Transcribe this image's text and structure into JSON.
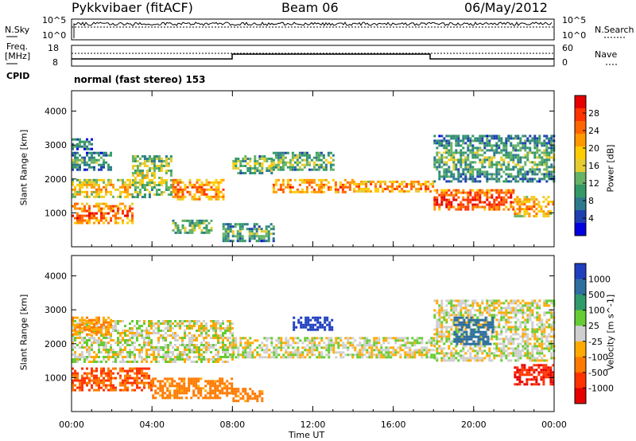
{
  "header": {
    "radar": "Pykkvibaer (fitACF)",
    "beam": "Beam 06",
    "date": "06/May/2012"
  },
  "panels": {
    "nsky": {
      "left_label": "N.Sky",
      "right_label": "N.Search",
      "left_ticks": [
        "10^5",
        "10^0"
      ],
      "right_ticks": [
        "10^5",
        "10^0"
      ]
    },
    "freq": {
      "left_label_1": "Freq.",
      "left_label_2": "[MHz]",
      "right_label": "Nave",
      "left_ticks": [
        "18",
        "8"
      ],
      "right_ticks": [
        "60",
        "0"
      ]
    },
    "cpid": {
      "label": "CPID",
      "text": "normal (fast stereo) 153"
    }
  },
  "power_colorbar": {
    "label": "Power [dB]",
    "ticks": [
      "28",
      "24",
      "20",
      "16",
      "12",
      "8",
      "4"
    ],
    "colors": [
      "#e60000",
      "#ff3300",
      "#ff6600",
      "#ff9900",
      "#ffcc00",
      "#e6cc33",
      "#66b266",
      "#339966",
      "#2d7a8c",
      "#2040b0",
      "#0000e0"
    ]
  },
  "velocity_colorbar": {
    "label": "Velocity [m s^-1]",
    "ticks": [
      "1000",
      "500",
      "100",
      "25",
      "-25",
      "-100",
      "-500",
      "-1000"
    ],
    "colors": [
      "#1f3fbf",
      "#2f6fa0",
      "#2f9a6a",
      "#66cc33",
      "#cfcfcf",
      "#ffaa00",
      "#ff7a00",
      "#ff3300",
      "#e60000"
    ]
  },
  "chart_data": [
    {
      "type": "heatmap",
      "title": "",
      "xlabel": "Time UT",
      "ylabel": "Slant Range [km]",
      "x_ticks": [
        "00:00",
        "04:00",
        "08:00",
        "12:00",
        "16:00",
        "20:00",
        "00:00"
      ],
      "y_ticks": [
        1000,
        2000,
        3000,
        4000
      ],
      "ylim": [
        0,
        4600
      ],
      "xlim_hours": [
        0,
        24
      ],
      "variable": "Power [dB]",
      "scatter_bands": [
        {
          "t": [
            0,
            3
          ],
          "r": [
            700,
            1300
          ],
          "value": 24
        },
        {
          "t": [
            0,
            3
          ],
          "r": [
            1500,
            2000
          ],
          "value": 18
        },
        {
          "t": [
            0,
            2
          ],
          "r": [
            2300,
            2800
          ],
          "value": 10
        },
        {
          "t": [
            0,
            1
          ],
          "r": [
            2900,
            3200
          ],
          "value": 8
        },
        {
          "t": [
            3,
            5
          ],
          "r": [
            1500,
            2700
          ],
          "value": 14
        },
        {
          "t": [
            5,
            7.5
          ],
          "r": [
            1400,
            2000
          ],
          "value": 22
        },
        {
          "t": [
            5,
            7
          ],
          "r": [
            400,
            800
          ],
          "value": 12
        },
        {
          "t": [
            7.5,
            10
          ],
          "r": [
            200,
            700
          ],
          "value": 10
        },
        {
          "t": [
            8,
            10
          ],
          "r": [
            2200,
            2700
          ],
          "value": 12
        },
        {
          "t": [
            10,
            14
          ],
          "r": [
            1600,
            2000
          ],
          "value": 22
        },
        {
          "t": [
            10,
            13
          ],
          "r": [
            2300,
            2800
          ],
          "value": 12
        },
        {
          "t": [
            14,
            18
          ],
          "r": [
            1650,
            1950
          ],
          "value": 22
        },
        {
          "t": [
            18,
            22
          ],
          "r": [
            1100,
            1700
          ],
          "value": 26
        },
        {
          "t": [
            18,
            24
          ],
          "r": [
            1900,
            3300
          ],
          "value": 10
        },
        {
          "t": [
            22,
            24
          ],
          "r": [
            900,
            1500
          ],
          "value": 20
        }
      ]
    },
    {
      "type": "heatmap",
      "title": "",
      "xlabel": "Time UT",
      "ylabel": "Slant Range [km]",
      "x_ticks": [
        "00:00",
        "04:00",
        "08:00",
        "12:00",
        "16:00",
        "20:00",
        "00:00"
      ],
      "y_ticks": [
        1000,
        2000,
        3000,
        4000
      ],
      "ylim": [
        0,
        4600
      ],
      "xlim_hours": [
        0,
        24
      ],
      "variable": "Velocity [m s^-1]",
      "scatter_bands": [
        {
          "t": [
            0,
            4
          ],
          "r": [
            600,
            1300
          ],
          "value": -300
        },
        {
          "t": [
            4,
            8
          ],
          "r": [
            400,
            1000
          ],
          "value": -150
        },
        {
          "t": [
            0,
            8
          ],
          "r": [
            1500,
            2700
          ],
          "value": 0
        },
        {
          "t": [
            0,
            2
          ],
          "r": [
            2300,
            2800
          ],
          "value": -100
        },
        {
          "t": [
            8,
            18
          ],
          "r": [
            1600,
            2200
          ],
          "value": 0
        },
        {
          "t": [
            11,
            13
          ],
          "r": [
            2400,
            2800
          ],
          "value": 600
        },
        {
          "t": [
            18,
            24
          ],
          "r": [
            1500,
            3300
          ],
          "value": 0
        },
        {
          "t": [
            19,
            21
          ],
          "r": [
            2000,
            2800
          ],
          "value": 300
        },
        {
          "t": [
            22,
            24
          ],
          "r": [
            800,
            1400
          ],
          "value": -600
        },
        {
          "t": [
            8,
            9.5
          ],
          "r": [
            300,
            700
          ],
          "value": -150
        }
      ]
    }
  ]
}
